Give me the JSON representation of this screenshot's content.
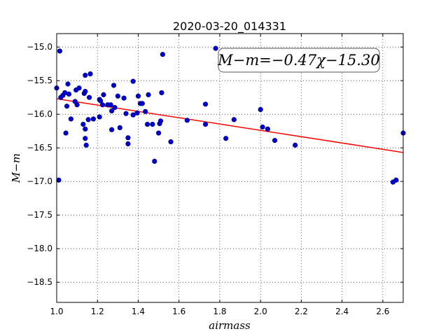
{
  "chart_data": {
    "type": "scatter",
    "title": "2020-03-20_014331",
    "xlabel": "airmass",
    "ylabel": "M−m",
    "xlim": [
      1.0,
      2.7
    ],
    "ylim": [
      -18.8,
      -14.8
    ],
    "y_inverted": true,
    "x_ticks": [
      1.0,
      1.2,
      1.4,
      1.6,
      1.8,
      2.0,
      2.2,
      2.4,
      2.6
    ],
    "x_tick_labels": [
      "1.0",
      "1.2",
      "1.4",
      "1.6",
      "1.8",
      "2.0",
      "2.2",
      "2.4",
      "2.6"
    ],
    "y_ticks": [
      -15.0,
      -15.5,
      -16.0,
      -16.5,
      -17.0,
      -17.5,
      -18.0,
      -18.5
    ],
    "y_tick_labels": [
      "−15.0",
      "−15.5",
      "−16.0",
      "−16.5",
      "−17.0",
      "−17.5",
      "−18.0",
      "−18.5"
    ],
    "grid": true,
    "annotation": "M−m=−0.47χ−15.30",
    "fit": {
      "slope": -0.47,
      "intercept": -15.3,
      "color": "#ff0000"
    },
    "marker_color": "#0000cc",
    "points": [
      {
        "x": 1.0,
        "y": -15.61
      },
      {
        "x": 1.01,
        "y": -16.98
      },
      {
        "x": 1.015,
        "y": -15.06
      },
      {
        "x": 1.02,
        "y": -15.75
      },
      {
        "x": 1.03,
        "y": -15.72
      },
      {
        "x": 1.04,
        "y": -15.68
      },
      {
        "x": 1.045,
        "y": -16.28
      },
      {
        "x": 1.05,
        "y": -15.88
      },
      {
        "x": 1.055,
        "y": -15.55
      },
      {
        "x": 1.06,
        "y": -15.7
      },
      {
        "x": 1.07,
        "y": -16.07
      },
      {
        "x": 1.09,
        "y": -15.81
      },
      {
        "x": 1.095,
        "y": -15.64
      },
      {
        "x": 1.1,
        "y": -15.86
      },
      {
        "x": 1.11,
        "y": -15.61
      },
      {
        "x": 1.13,
        "y": -16.15
      },
      {
        "x": 1.135,
        "y": -15.69
      },
      {
        "x": 1.14,
        "y": -15.66
      },
      {
        "x": 1.14,
        "y": -16.22
      },
      {
        "x": 1.14,
        "y": -16.36
      },
      {
        "x": 1.14,
        "y": -15.42
      },
      {
        "x": 1.145,
        "y": -16.46
      },
      {
        "x": 1.155,
        "y": -16.08
      },
      {
        "x": 1.16,
        "y": -15.75
      },
      {
        "x": 1.165,
        "y": -15.4
      },
      {
        "x": 1.18,
        "y": -16.07
      },
      {
        "x": 1.21,
        "y": -16.04
      },
      {
        "x": 1.21,
        "y": -15.78
      },
      {
        "x": 1.215,
        "y": -15.8
      },
      {
        "x": 1.225,
        "y": -15.86
      },
      {
        "x": 1.23,
        "y": -15.71
      },
      {
        "x": 1.25,
        "y": -15.86
      },
      {
        "x": 1.265,
        "y": -15.86
      },
      {
        "x": 1.27,
        "y": -15.95
      },
      {
        "x": 1.27,
        "y": -16.23
      },
      {
        "x": 1.28,
        "y": -15.57
      },
      {
        "x": 1.285,
        "y": -15.9
      },
      {
        "x": 1.3,
        "y": -15.73
      },
      {
        "x": 1.31,
        "y": -16.2
      },
      {
        "x": 1.33,
        "y": -15.76
      },
      {
        "x": 1.34,
        "y": -15.99
      },
      {
        "x": 1.35,
        "y": -16.35
      },
      {
        "x": 1.35,
        "y": -16.44
      },
      {
        "x": 1.375,
        "y": -15.51
      },
      {
        "x": 1.375,
        "y": -16.01
      },
      {
        "x": 1.395,
        "y": -15.98
      },
      {
        "x": 1.4,
        "y": -15.73
      },
      {
        "x": 1.41,
        "y": -15.84
      },
      {
        "x": 1.42,
        "y": -15.84
      },
      {
        "x": 1.435,
        "y": -15.96
      },
      {
        "x": 1.445,
        "y": -16.15
      },
      {
        "x": 1.45,
        "y": -15.71
      },
      {
        "x": 1.47,
        "y": -16.15
      },
      {
        "x": 1.48,
        "y": -16.7
      },
      {
        "x": 1.5,
        "y": -16.28
      },
      {
        "x": 1.505,
        "y": -16.14
      },
      {
        "x": 1.51,
        "y": -16.1
      },
      {
        "x": 1.515,
        "y": -15.68
      },
      {
        "x": 1.52,
        "y": -15.11
      },
      {
        "x": 1.56,
        "y": -16.41
      },
      {
        "x": 1.64,
        "y": -16.09
      },
      {
        "x": 1.73,
        "y": -15.85
      },
      {
        "x": 1.73,
        "y": -16.15
      },
      {
        "x": 1.78,
        "y": -15.02
      },
      {
        "x": 1.83,
        "y": -16.36
      },
      {
        "x": 1.87,
        "y": -16.08
      },
      {
        "x": 2.0,
        "y": -15.93
      },
      {
        "x": 2.01,
        "y": -16.19
      },
      {
        "x": 2.035,
        "y": -16.22
      },
      {
        "x": 2.07,
        "y": -16.39
      },
      {
        "x": 2.17,
        "y": -16.46
      },
      {
        "x": 2.65,
        "y": -17.01
      },
      {
        "x": 2.665,
        "y": -16.98
      },
      {
        "x": 2.7,
        "y": -16.28
      }
    ]
  }
}
